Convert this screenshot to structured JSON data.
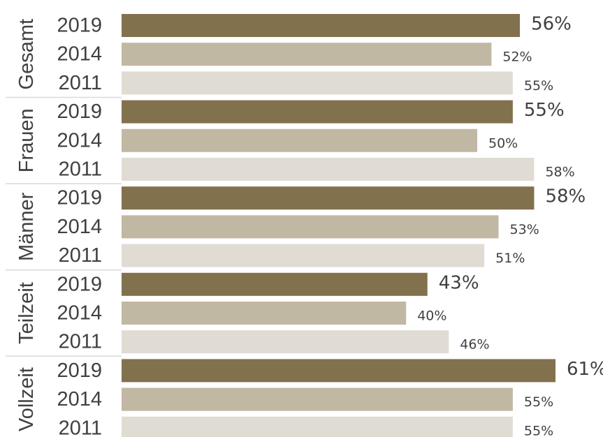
{
  "chart_data": {
    "type": "bar",
    "orientation": "horizontal",
    "groups": [
      {
        "name": "Gesamt",
        "bars": [
          {
            "year": "2019",
            "value": 56,
            "label": "56%"
          },
          {
            "year": "2014",
            "value": 52,
            "label": "52%"
          },
          {
            "year": "2011",
            "value": 55,
            "label": "55%"
          }
        ]
      },
      {
        "name": "Frauen",
        "bars": [
          {
            "year": "2019",
            "value": 55,
            "label": "55%"
          },
          {
            "year": "2014",
            "value": 50,
            "label": "50%"
          },
          {
            "year": "2011",
            "value": 58,
            "label": "58%"
          }
        ]
      },
      {
        "name": "Männer",
        "bars": [
          {
            "year": "2019",
            "value": 58,
            "label": "58%"
          },
          {
            "year": "2014",
            "value": 53,
            "label": "53%"
          },
          {
            "year": "2011",
            "value": 51,
            "label": "51%"
          }
        ]
      },
      {
        "name": "Teilzeit",
        "bars": [
          {
            "year": "2019",
            "value": 43,
            "label": "43%"
          },
          {
            "year": "2014",
            "value": 40,
            "label": "40%"
          },
          {
            "year": "2011",
            "value": 46,
            "label": "46%"
          }
        ]
      },
      {
        "name": "Vollzeit",
        "bars": [
          {
            "year": "2019",
            "value": 61,
            "label": "61%"
          },
          {
            "year": "2014",
            "value": 55,
            "label": "55%"
          },
          {
            "year": "2011",
            "value": 55,
            "label": "55%"
          }
        ]
      }
    ],
    "series_colors": {
      "2019": "#82714d",
      "2014": "#c1b8a3",
      "2011": "#e0dcd4"
    },
    "xlim": [
      0,
      61
    ],
    "grid": false,
    "legend": "none",
    "title": "",
    "xlabel": "",
    "ylabel": ""
  }
}
